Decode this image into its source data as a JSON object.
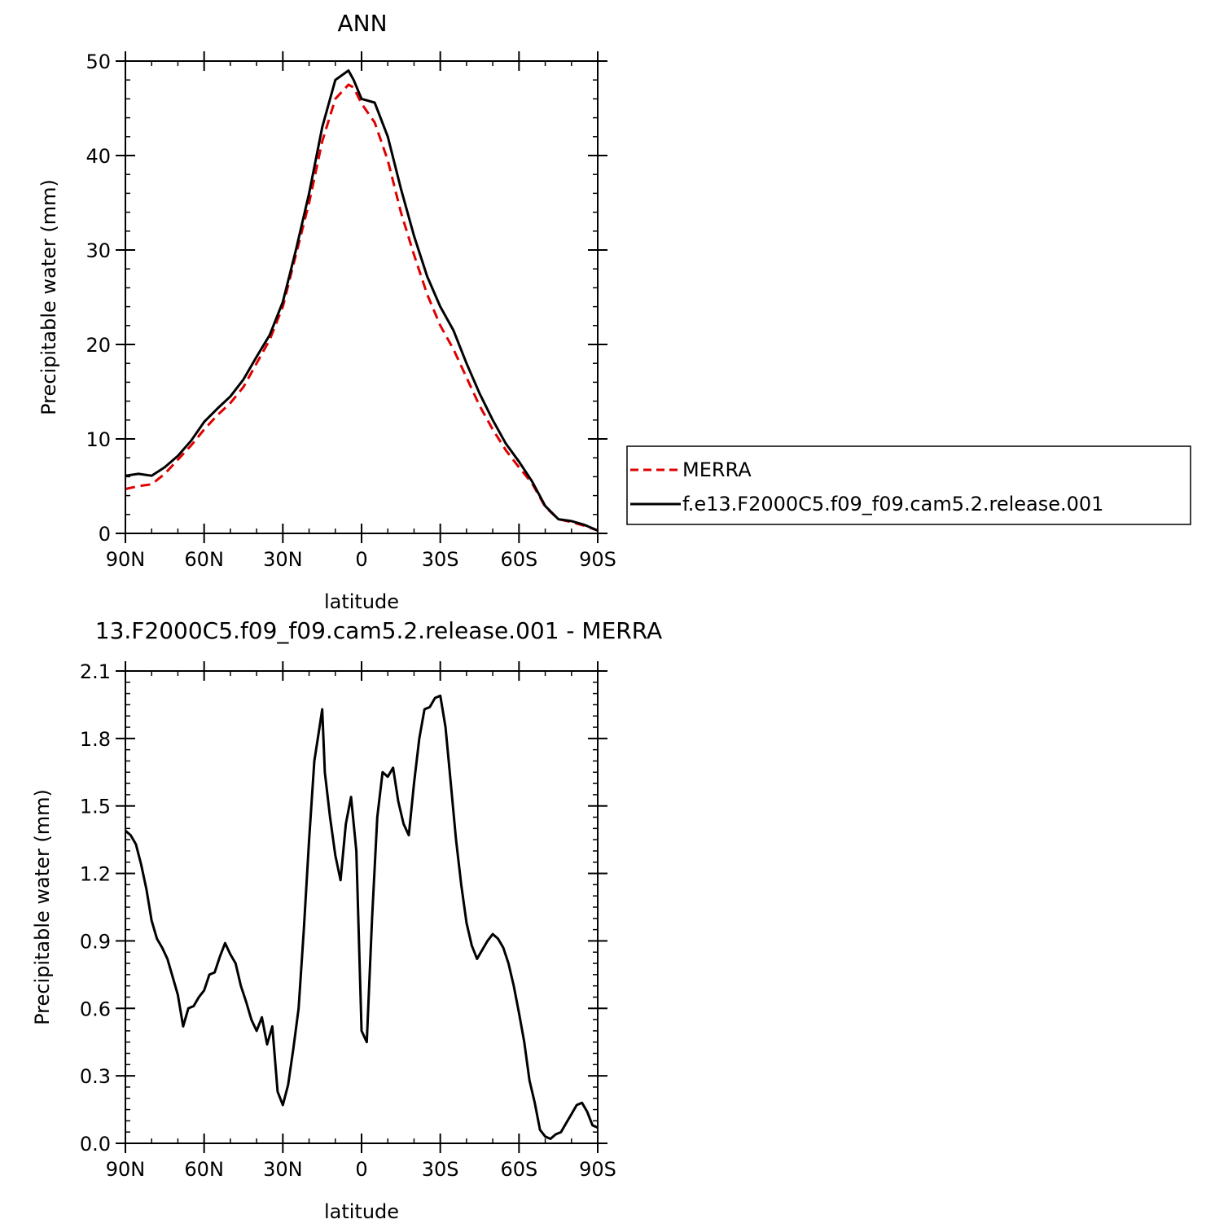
{
  "chart_data": [
    {
      "type": "line",
      "title": "ANN",
      "xlabel": "latitude",
      "ylabel": "Precipitable water (mm)",
      "xlim": [
        90,
        -90
      ],
      "ylim": [
        0,
        50
      ],
      "x_tick_values": [
        90,
        60,
        30,
        0,
        -30,
        -60,
        -90
      ],
      "x_tick_labels": [
        "90N",
        "60N",
        "30N",
        "0",
        "30S",
        "60S",
        "90S"
      ],
      "y_tick_values": [
        0,
        10,
        20,
        30,
        40,
        50
      ],
      "y_tick_labels": [
        "0",
        "10",
        "20",
        "30",
        "40",
        "50"
      ],
      "grid": false,
      "legend_position": "right",
      "series": [
        {
          "name": "MERRA",
          "color": "#e00000",
          "dash": "dashed",
          "x": [
            90,
            85,
            80,
            75,
            70,
            65,
            60,
            55,
            50,
            45,
            40,
            35,
            30,
            25,
            20,
            15,
            10,
            5,
            3,
            0,
            -5,
            -10,
            -15,
            -20,
            -25,
            -30,
            -35,
            -40,
            -45,
            -50,
            -55,
            -60,
            -65,
            -70,
            -75,
            -80,
            -85,
            -90
          ],
          "y": [
            4.7,
            5.0,
            5.2,
            6.3,
            7.8,
            9.3,
            11.0,
            12.5,
            13.8,
            15.5,
            18.0,
            20.5,
            24.0,
            29.5,
            35.0,
            41.5,
            46.0,
            47.5,
            47.2,
            45.5,
            43.5,
            39.5,
            34.0,
            29.5,
            25.3,
            22.0,
            19.5,
            16.5,
            13.5,
            11.0,
            8.8,
            7.0,
            5.3,
            2.8,
            1.5,
            1.2,
            0.8,
            0.3
          ]
        },
        {
          "name": "f.e13.F2000C5.f09_f09.cam5.2.release.001",
          "color": "#000000",
          "dash": "solid",
          "x": [
            90,
            85,
            80,
            75,
            70,
            65,
            60,
            55,
            50,
            45,
            40,
            35,
            30,
            25,
            20,
            15,
            10,
            5,
            3,
            0,
            -5,
            -10,
            -15,
            -20,
            -25,
            -30,
            -35,
            -40,
            -45,
            -50,
            -55,
            -60,
            -65,
            -70,
            -75,
            -80,
            -85,
            -90
          ],
          "y": [
            6.1,
            6.3,
            6.1,
            7.0,
            8.2,
            9.8,
            11.8,
            13.2,
            14.5,
            16.3,
            18.7,
            21.0,
            24.5,
            30.0,
            36.0,
            43.0,
            48.0,
            49.0,
            48.0,
            46.0,
            45.6,
            42.0,
            36.5,
            31.5,
            27.2,
            24.0,
            21.5,
            18.0,
            14.8,
            12.0,
            9.5,
            7.6,
            5.5,
            2.9,
            1.5,
            1.3,
            0.9,
            0.3
          ]
        }
      ]
    },
    {
      "type": "line",
      "title": "13.F2000C5.f09_f09.cam5.2.release.001 - MERRA",
      "xlabel": "latitude",
      "ylabel": "Precipitable water (mm)",
      "xlim": [
        90,
        -90
      ],
      "ylim": [
        0,
        2.1
      ],
      "x_tick_values": [
        90,
        60,
        30,
        0,
        -30,
        -60,
        -90
      ],
      "x_tick_labels": [
        "90N",
        "60N",
        "30N",
        "0",
        "30S",
        "60S",
        "90S"
      ],
      "y_tick_values": [
        0,
        0.3,
        0.6,
        0.9,
        1.2,
        1.5,
        1.8,
        2.1
      ],
      "y_tick_labels": [
        "0.0",
        "0.3",
        "0.6",
        "0.9",
        "1.2",
        "1.5",
        "1.8",
        "2.1"
      ],
      "grid": false,
      "series": [
        {
          "color": "#000000",
          "dash": "solid",
          "x": [
            90,
            88,
            86,
            84,
            82,
            80,
            78,
            76,
            74,
            72,
            70,
            68,
            66,
            64,
            62,
            60,
            58,
            56,
            54,
            52,
            50,
            48,
            46,
            44,
            42,
            40,
            38,
            36,
            34,
            32,
            30,
            28,
            26,
            24,
            22,
            20,
            18,
            16,
            15,
            14,
            12,
            10,
            8,
            6,
            4,
            2,
            0,
            -2,
            -4,
            -6,
            -8,
            -10,
            -12,
            -14,
            -16,
            -18,
            -20,
            -22,
            -24,
            -26,
            -28,
            -30,
            -32,
            -34,
            -36,
            -38,
            -40,
            -42,
            -44,
            -46,
            -48,
            -50,
            -52,
            -54,
            -56,
            -58,
            -60,
            -62,
            -64,
            -66,
            -68,
            -70,
            -72,
            -74,
            -76,
            -78,
            -80,
            -82,
            -84,
            -86,
            -88,
            -90
          ],
          "y": [
            1.39,
            1.37,
            1.33,
            1.24,
            1.13,
            0.99,
            0.91,
            0.87,
            0.82,
            0.74,
            0.66,
            0.52,
            0.6,
            0.61,
            0.65,
            0.68,
            0.75,
            0.76,
            0.83,
            0.89,
            0.84,
            0.8,
            0.7,
            0.63,
            0.55,
            0.5,
            0.56,
            0.44,
            0.52,
            0.23,
            0.17,
            0.26,
            0.42,
            0.6,
            0.95,
            1.35,
            1.7,
            1.85,
            1.93,
            1.65,
            1.45,
            1.28,
            1.17,
            1.42,
            1.54,
            1.3,
            0.5,
            0.45,
            1.0,
            1.45,
            1.65,
            1.63,
            1.67,
            1.52,
            1.42,
            1.37,
            1.6,
            1.8,
            1.93,
            1.94,
            1.98,
            1.99,
            1.85,
            1.6,
            1.35,
            1.15,
            0.98,
            0.88,
            0.82,
            0.86,
            0.9,
            0.93,
            0.91,
            0.87,
            0.8,
            0.7,
            0.58,
            0.45,
            0.28,
            0.18,
            0.06,
            0.03,
            0.02,
            0.04,
            0.05,
            0.09,
            0.13,
            0.17,
            0.18,
            0.14,
            0.08,
            0.07
          ]
        }
      ]
    }
  ]
}
